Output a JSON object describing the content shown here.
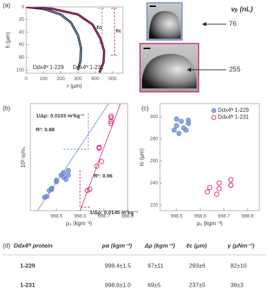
{
  "chart_data": [
    {
      "type": "line",
      "label": "(a)",
      "xlabel": "r   (μm)",
      "ylabel": "h   (μm)",
      "xlim": [
        0,
        560
      ],
      "ylim": [
        0,
        105
      ],
      "y_inverted": true,
      "xticks": [
        0,
        100,
        200,
        300,
        400,
        500
      ],
      "yticks": [
        0,
        20,
        40,
        60,
        80,
        100
      ],
      "legend": "bottom-center",
      "series": [
        {
          "name": "Ddx4ᴺ 1-229",
          "color": "#6b8cce",
          "x": [
            0,
            100,
            200,
            260,
            300,
            318,
            315,
            300
          ],
          "values": [
            0,
            3,
            12,
            25,
            45,
            65,
            85,
            100
          ]
        },
        {
          "name": "Ddx4ᴺ 1-231",
          "color": "#d4237a",
          "x": [
            0,
            150,
            300,
            385,
            430,
            452,
            448,
            425
          ],
          "values": [
            0,
            3,
            12,
            28,
            50,
            70,
            88,
            104
          ]
        }
      ],
      "annotations": [
        {
          "text": "ℓc",
          "color": "#6b8cce"
        },
        {
          "text": "ℓc",
          "color": "#d4237a"
        }
      ]
    },
    {
      "type": "scatter",
      "label": "(b)",
      "xlabel": "ρ₀   (kgm⁻³)",
      "ylabel": "10³ νᵦ/ν₀",
      "xlim": [
        998.39,
        998.8
      ],
      "ylim": [
        0.3,
        2.7
      ],
      "xticks": [
        998.5,
        998.6,
        998.7,
        998.8
      ],
      "series": [
        {
          "kind": "line",
          "color": "#6b8cce",
          "x": [
            998.42,
            998.72
          ],
          "values": [
            0.3,
            2.7
          ]
        },
        {
          "kind": "line",
          "color": "#d4237a",
          "x": [
            998.6,
            998.77
          ],
          "values": [
            0.3,
            2.7
          ]
        },
        {
          "marker": "filled",
          "color": "#6b8cce",
          "x": [
            998.45,
            998.46,
            998.47,
            998.48,
            998.48,
            998.5,
            998.5,
            998.52,
            998.53,
            998.53,
            998.54,
            998.55,
            998.55
          ],
          "values": [
            0.6,
            0.62,
            0.75,
            0.8,
            0.78,
            0.95,
            0.98,
            1.1,
            1.15,
            1.05,
            1.0,
            1.1,
            1.2
          ]
        },
        {
          "marker": "open",
          "color": "#d4237a",
          "x": [
            998.63,
            998.64,
            998.67,
            998.68,
            998.68,
            998.69,
            998.73,
            998.73,
            998.73,
            998.73
          ],
          "values": [
            0.75,
            0.78,
            1.3,
            1.7,
            1.72,
            1.4,
            2.25,
            2.3,
            2.38,
            2.42
          ]
        }
      ],
      "annotations": [
        {
          "text": "1/Δρ: 0.0103 m³kg⁻¹",
          "color": "#6b8cce"
        },
        {
          "text": "R²: 0.88",
          "color": "#6b8cce"
        },
        {
          "text": "R²: 0.96",
          "color": "#d4237a"
        },
        {
          "text": "1/Δρ: 0.0145 m³kg⁻¹",
          "color": "#d4237a"
        }
      ]
    },
    {
      "type": "scatter",
      "label": "(c)",
      "xlabel": "ρ₀   (kgm⁻³)",
      "ylabel": "ℓc   (μm)",
      "xlim": [
        998.43,
        998.85
      ],
      "ylim": [
        215,
        312
      ],
      "xticks": [
        998.5,
        998.6,
        998.7,
        998.8
      ],
      "yticks": [
        220,
        240,
        260,
        280,
        300
      ],
      "legend": "top-right",
      "series": [
        {
          "name": "Ddx4ᴺ 1-229",
          "marker": "filled",
          "color": "#6b8cce",
          "x": [
            998.49,
            998.5,
            998.5,
            998.51,
            998.52,
            998.53,
            998.54,
            998.55,
            998.55
          ],
          "values": [
            288,
            292,
            298,
            285,
            296,
            290,
            288,
            294,
            297
          ]
        },
        {
          "name": "Ddx4ᴺ 1-231",
          "marker": "open",
          "color": "#d4237a",
          "x": [
            998.63,
            998.64,
            998.67,
            998.68,
            998.68,
            998.73,
            998.73,
            998.73
          ],
          "values": [
            232,
            236,
            230,
            235,
            240,
            238,
            238,
            243
          ]
        }
      ]
    }
  ],
  "images": {
    "title": "νᵦ (nL)",
    "values": [
      76,
      255
    ],
    "colors": [
      "#6b8cce",
      "#d4237a"
    ]
  },
  "table": {
    "label": "(d)",
    "header": [
      "Ddx4ᴺ protein",
      "ρα  (kgm⁻³)",
      "Δρ  (kgm⁻³)",
      "ℓc  (μm)",
      "γ  (μNm⁻¹)"
    ],
    "rows": [
      [
        "1-229",
        "998.4±1.5",
        "97±11",
        "293±6",
        "82±10"
      ],
      [
        "1-231",
        "998.6±1.0",
        "69±5",
        "237±5",
        "38±3"
      ]
    ],
    "row_colors": [
      "#6b8cce",
      "#d4237a"
    ]
  }
}
